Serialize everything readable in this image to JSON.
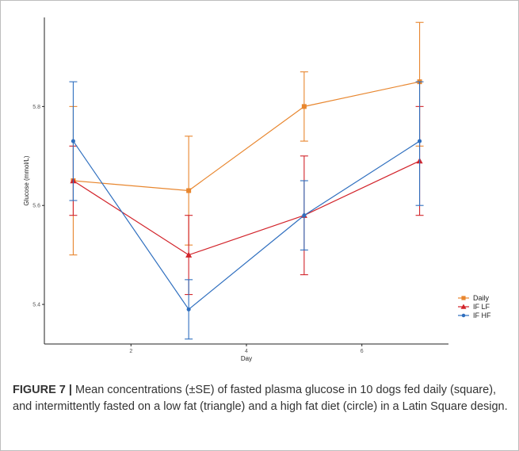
{
  "caption": {
    "label": "FIGURE 7 |",
    "text": " Mean concentrations (±SE) of fasted plasma glucose in 10 dogs fed daily (square), and intermittently fasted on a low fat (triangle) and a high fat diet (circle) in a Latin Square design."
  },
  "chart_data": {
    "type": "line",
    "xlabel": "Day",
    "ylabel": "Glucose (mmol/L)",
    "xlim": [
      0.5,
      7.5
    ],
    "ylim": [
      5.32,
      5.98
    ],
    "xticks": [
      2,
      4,
      6
    ],
    "yticks": [
      5.4,
      5.6,
      5.8
    ],
    "grid": false,
    "legend_position": "right",
    "series": [
      {
        "name": "Daily",
        "marker": "square",
        "color": "#E8862E",
        "x": [
          1,
          3,
          5,
          7
        ],
        "y": [
          5.65,
          5.63,
          5.8,
          5.85
        ],
        "err_low": [
          5.5,
          5.52,
          5.73,
          5.72
        ],
        "err_high": [
          5.8,
          5.74,
          5.87,
          5.97
        ]
      },
      {
        "name": "IF LF",
        "marker": "triangle",
        "color": "#D2232A",
        "x": [
          1,
          3,
          5,
          7
        ],
        "y": [
          5.65,
          5.5,
          5.58,
          5.69
        ],
        "err_low": [
          5.58,
          5.42,
          5.46,
          5.58
        ],
        "err_high": [
          5.72,
          5.58,
          5.7,
          5.8
        ]
      },
      {
        "name": "IF HF",
        "marker": "circle",
        "color": "#2F6FBF",
        "x": [
          1,
          3,
          5,
          7
        ],
        "y": [
          5.73,
          5.39,
          5.58,
          5.73
        ],
        "err_low": [
          5.61,
          5.33,
          5.51,
          5.6
        ],
        "err_high": [
          5.85,
          5.45,
          5.65,
          5.85
        ]
      }
    ]
  }
}
